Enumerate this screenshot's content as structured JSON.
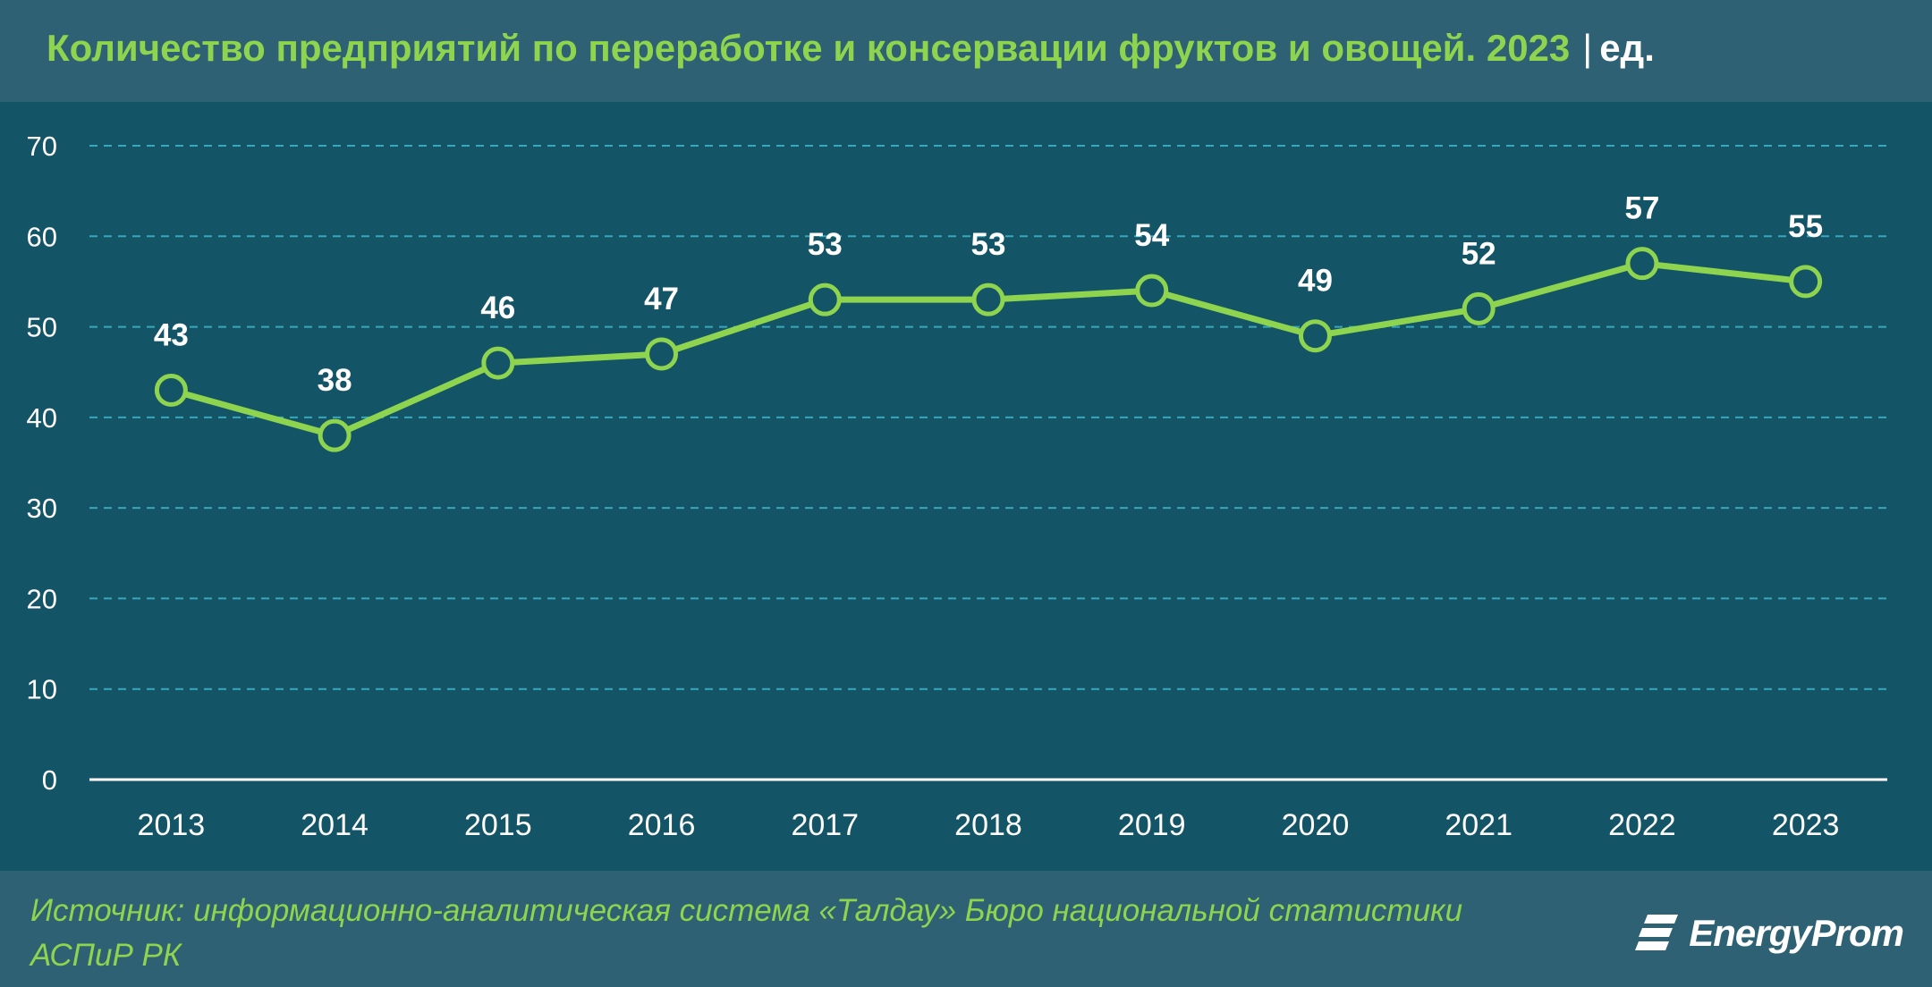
{
  "header": {
    "title": "Количество предприятий по переработке и консервации фруктов и овощей. 2023",
    "unit": "ед."
  },
  "footer": {
    "source_line1": "Источник: информационно-аналитическая система «Талдау» Бюро национальной статистики",
    "source_line2": "АСПиР РК",
    "logo_text": "EnergyProm"
  },
  "colors": {
    "background": "#135566",
    "band": "#2e6173",
    "accent": "#8ed44f",
    "grid": "#3aa6b9",
    "text": "#ffffff"
  },
  "chart_data": {
    "type": "line",
    "categories": [
      "2013",
      "2014",
      "2015",
      "2016",
      "2017",
      "2018",
      "2019",
      "2020",
      "2021",
      "2022",
      "2023"
    ],
    "series": [
      {
        "values": [
          43,
          38,
          46,
          47,
          53,
          53,
          54,
          49,
          52,
          57,
          55
        ]
      }
    ],
    "ylim": [
      0,
      70
    ],
    "yticks": [
      0,
      10,
      20,
      30,
      40,
      50,
      60,
      70
    ],
    "grid": true,
    "data_labels": true,
    "markers": "circle"
  }
}
